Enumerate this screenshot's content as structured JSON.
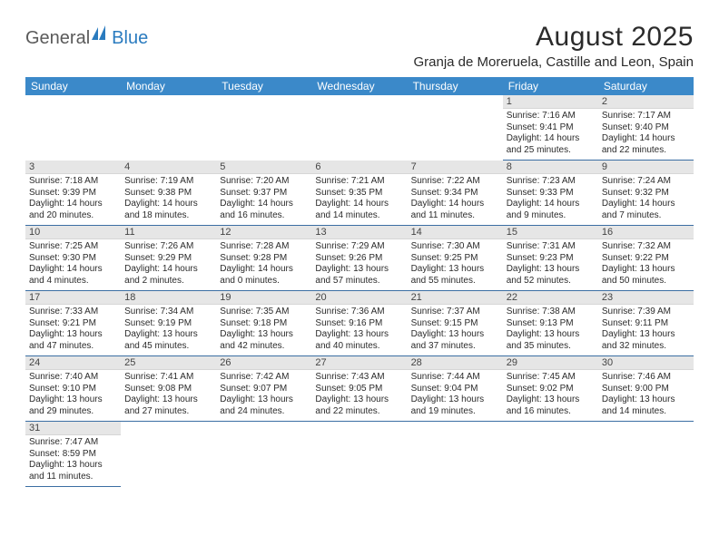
{
  "logo": {
    "text1": "General",
    "text2": "Blue"
  },
  "title": "August 2025",
  "location": "Granja de Moreruela, Castille and Leon, Spain",
  "colors": {
    "header_bg": "#3b89c9",
    "header_fg": "#ffffff",
    "daynum_bg": "#e6e6e6",
    "row_border": "#3b6ea3",
    "logo_gray": "#5a5a5a",
    "logo_blue": "#2a7bbf"
  },
  "day_headers": [
    "Sunday",
    "Monday",
    "Tuesday",
    "Wednesday",
    "Thursday",
    "Friday",
    "Saturday"
  ],
  "weeks": [
    [
      null,
      null,
      null,
      null,
      null,
      {
        "n": "1",
        "sr": "Sunrise: 7:16 AM",
        "ss": "Sunset: 9:41 PM",
        "d1": "Daylight: 14 hours",
        "d2": "and 25 minutes."
      },
      {
        "n": "2",
        "sr": "Sunrise: 7:17 AM",
        "ss": "Sunset: 9:40 PM",
        "d1": "Daylight: 14 hours",
        "d2": "and 22 minutes."
      }
    ],
    [
      {
        "n": "3",
        "sr": "Sunrise: 7:18 AM",
        "ss": "Sunset: 9:39 PM",
        "d1": "Daylight: 14 hours",
        "d2": "and 20 minutes."
      },
      {
        "n": "4",
        "sr": "Sunrise: 7:19 AM",
        "ss": "Sunset: 9:38 PM",
        "d1": "Daylight: 14 hours",
        "d2": "and 18 minutes."
      },
      {
        "n": "5",
        "sr": "Sunrise: 7:20 AM",
        "ss": "Sunset: 9:37 PM",
        "d1": "Daylight: 14 hours",
        "d2": "and 16 minutes."
      },
      {
        "n": "6",
        "sr": "Sunrise: 7:21 AM",
        "ss": "Sunset: 9:35 PM",
        "d1": "Daylight: 14 hours",
        "d2": "and 14 minutes."
      },
      {
        "n": "7",
        "sr": "Sunrise: 7:22 AM",
        "ss": "Sunset: 9:34 PM",
        "d1": "Daylight: 14 hours",
        "d2": "and 11 minutes."
      },
      {
        "n": "8",
        "sr": "Sunrise: 7:23 AM",
        "ss": "Sunset: 9:33 PM",
        "d1": "Daylight: 14 hours",
        "d2": "and 9 minutes."
      },
      {
        "n": "9",
        "sr": "Sunrise: 7:24 AM",
        "ss": "Sunset: 9:32 PM",
        "d1": "Daylight: 14 hours",
        "d2": "and 7 minutes."
      }
    ],
    [
      {
        "n": "10",
        "sr": "Sunrise: 7:25 AM",
        "ss": "Sunset: 9:30 PM",
        "d1": "Daylight: 14 hours",
        "d2": "and 4 minutes."
      },
      {
        "n": "11",
        "sr": "Sunrise: 7:26 AM",
        "ss": "Sunset: 9:29 PM",
        "d1": "Daylight: 14 hours",
        "d2": "and 2 minutes."
      },
      {
        "n": "12",
        "sr": "Sunrise: 7:28 AM",
        "ss": "Sunset: 9:28 PM",
        "d1": "Daylight: 14 hours",
        "d2": "and 0 minutes."
      },
      {
        "n": "13",
        "sr": "Sunrise: 7:29 AM",
        "ss": "Sunset: 9:26 PM",
        "d1": "Daylight: 13 hours",
        "d2": "and 57 minutes."
      },
      {
        "n": "14",
        "sr": "Sunrise: 7:30 AM",
        "ss": "Sunset: 9:25 PM",
        "d1": "Daylight: 13 hours",
        "d2": "and 55 minutes."
      },
      {
        "n": "15",
        "sr": "Sunrise: 7:31 AM",
        "ss": "Sunset: 9:23 PM",
        "d1": "Daylight: 13 hours",
        "d2": "and 52 minutes."
      },
      {
        "n": "16",
        "sr": "Sunrise: 7:32 AM",
        "ss": "Sunset: 9:22 PM",
        "d1": "Daylight: 13 hours",
        "d2": "and 50 minutes."
      }
    ],
    [
      {
        "n": "17",
        "sr": "Sunrise: 7:33 AM",
        "ss": "Sunset: 9:21 PM",
        "d1": "Daylight: 13 hours",
        "d2": "and 47 minutes."
      },
      {
        "n": "18",
        "sr": "Sunrise: 7:34 AM",
        "ss": "Sunset: 9:19 PM",
        "d1": "Daylight: 13 hours",
        "d2": "and 45 minutes."
      },
      {
        "n": "19",
        "sr": "Sunrise: 7:35 AM",
        "ss": "Sunset: 9:18 PM",
        "d1": "Daylight: 13 hours",
        "d2": "and 42 minutes."
      },
      {
        "n": "20",
        "sr": "Sunrise: 7:36 AM",
        "ss": "Sunset: 9:16 PM",
        "d1": "Daylight: 13 hours",
        "d2": "and 40 minutes."
      },
      {
        "n": "21",
        "sr": "Sunrise: 7:37 AM",
        "ss": "Sunset: 9:15 PM",
        "d1": "Daylight: 13 hours",
        "d2": "and 37 minutes."
      },
      {
        "n": "22",
        "sr": "Sunrise: 7:38 AM",
        "ss": "Sunset: 9:13 PM",
        "d1": "Daylight: 13 hours",
        "d2": "and 35 minutes."
      },
      {
        "n": "23",
        "sr": "Sunrise: 7:39 AM",
        "ss": "Sunset: 9:11 PM",
        "d1": "Daylight: 13 hours",
        "d2": "and 32 minutes."
      }
    ],
    [
      {
        "n": "24",
        "sr": "Sunrise: 7:40 AM",
        "ss": "Sunset: 9:10 PM",
        "d1": "Daylight: 13 hours",
        "d2": "and 29 minutes."
      },
      {
        "n": "25",
        "sr": "Sunrise: 7:41 AM",
        "ss": "Sunset: 9:08 PM",
        "d1": "Daylight: 13 hours",
        "d2": "and 27 minutes."
      },
      {
        "n": "26",
        "sr": "Sunrise: 7:42 AM",
        "ss": "Sunset: 9:07 PM",
        "d1": "Daylight: 13 hours",
        "d2": "and 24 minutes."
      },
      {
        "n": "27",
        "sr": "Sunrise: 7:43 AM",
        "ss": "Sunset: 9:05 PM",
        "d1": "Daylight: 13 hours",
        "d2": "and 22 minutes."
      },
      {
        "n": "28",
        "sr": "Sunrise: 7:44 AM",
        "ss": "Sunset: 9:04 PM",
        "d1": "Daylight: 13 hours",
        "d2": "and 19 minutes."
      },
      {
        "n": "29",
        "sr": "Sunrise: 7:45 AM",
        "ss": "Sunset: 9:02 PM",
        "d1": "Daylight: 13 hours",
        "d2": "and 16 minutes."
      },
      {
        "n": "30",
        "sr": "Sunrise: 7:46 AM",
        "ss": "Sunset: 9:00 PM",
        "d1": "Daylight: 13 hours",
        "d2": "and 14 minutes."
      }
    ],
    [
      {
        "n": "31",
        "sr": "Sunrise: 7:47 AM",
        "ss": "Sunset: 8:59 PM",
        "d1": "Daylight: 13 hours",
        "d2": "and 11 minutes."
      },
      null,
      null,
      null,
      null,
      null,
      null
    ]
  ]
}
